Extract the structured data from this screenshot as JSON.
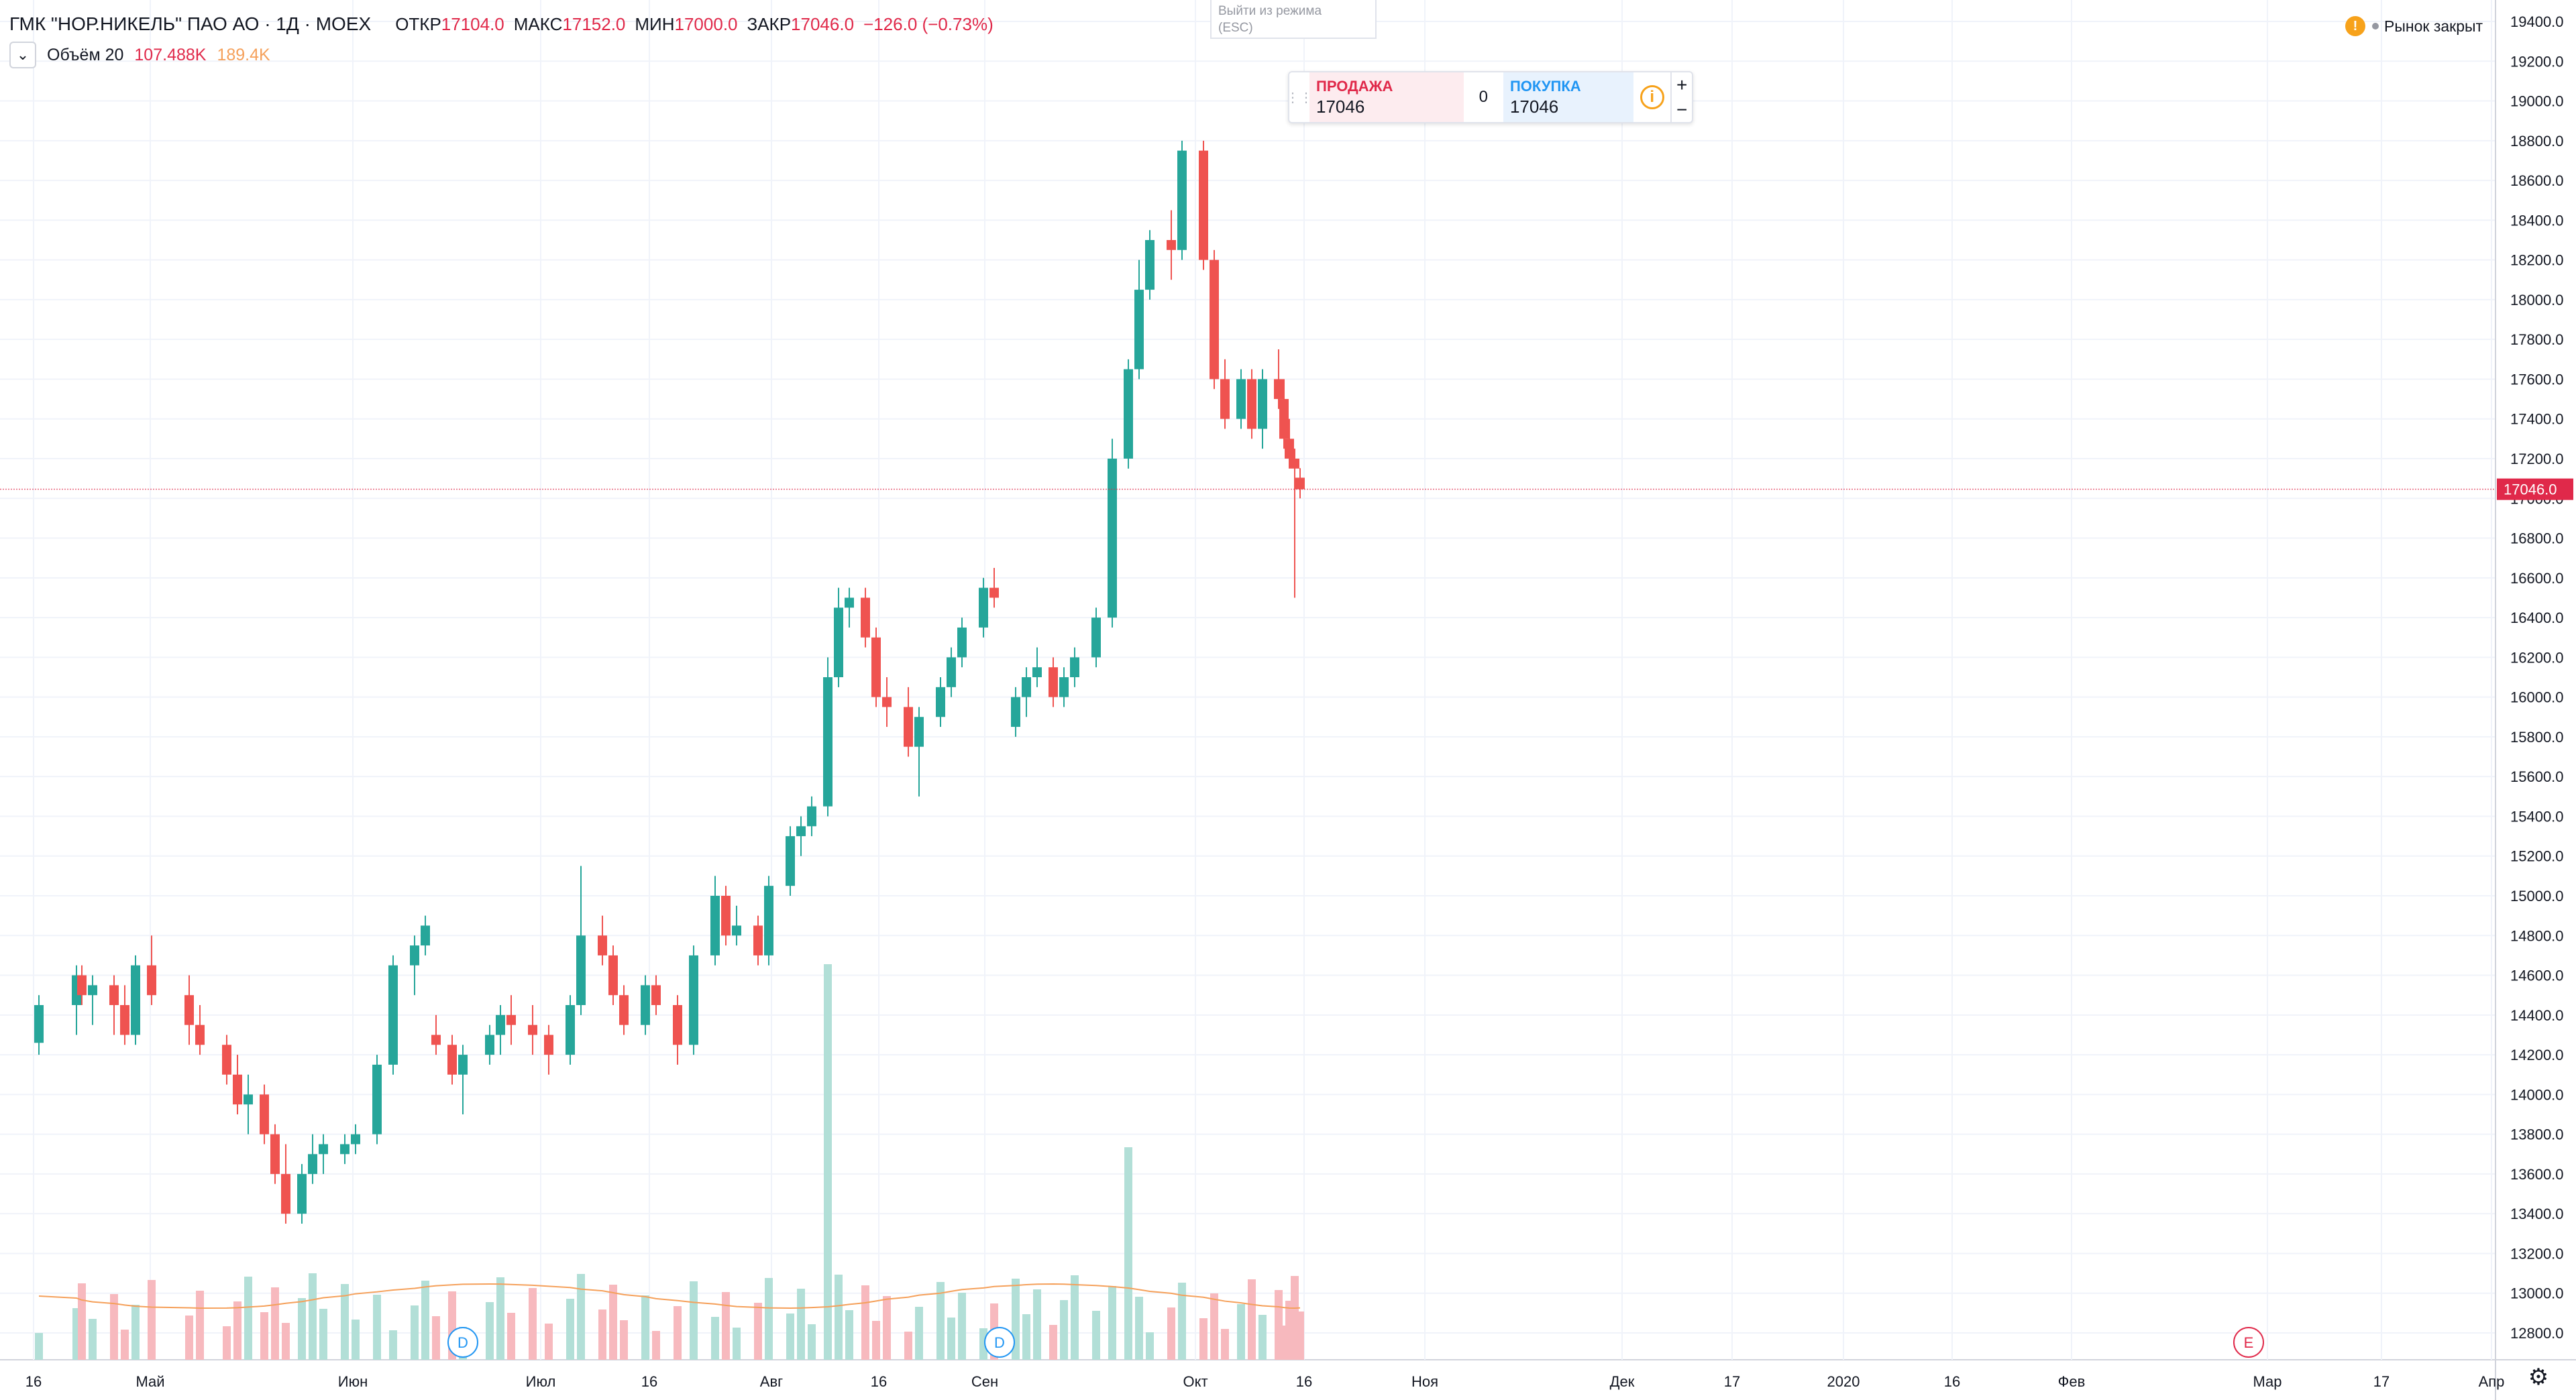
{
  "header": {
    "symbol": "ГМК \"НОР.НИКЕЛЬ\" ПАО АО · 1Д · MOEX",
    "open_label": "ОТКР",
    "open_value": "17104.0",
    "high_label": "МАКС",
    "high_value": "17152.0",
    "low_label": "МИН",
    "low_value": "17000.0",
    "close_label": "ЗАКР",
    "close_value": "17046.0",
    "change": "−126.0 (−0.73%)"
  },
  "volume_legend": {
    "toggle_icon": "chevron-down-icon",
    "label": "Объём 20",
    "value": "107.488K",
    "ma_value": "189.4K"
  },
  "exit_fullscreen": {
    "line1": "Выйти из режима",
    "line2": "(ESC)"
  },
  "trade_panel": {
    "sell_label": "ПРОДАЖА",
    "sell_price": "17046",
    "spread": "0",
    "buy_label": "ПОКУПКА",
    "buy_price": "17046",
    "info_icon": "i",
    "plus": "+",
    "minus": "−"
  },
  "market_status": {
    "icon": "!",
    "text": "Рынок закрыт"
  },
  "price_axis": {
    "ticks": [
      "19400.0",
      "19200.0",
      "19000.0",
      "18800.0",
      "18600.0",
      "18400.0",
      "18200.0",
      "18000.0",
      "17800.0",
      "17600.0",
      "17400.0",
      "17200.0",
      "17000.0",
      "16800.0",
      "16600.0",
      "16400.0",
      "16200.0",
      "16000.0",
      "15800.0",
      "15600.0",
      "15400.0",
      "15200.0",
      "15000.0",
      "14800.0",
      "14600.0",
      "14400.0",
      "14200.0",
      "14000.0",
      "13800.0",
      "13600.0",
      "13400.0",
      "13200.0",
      "13000.0",
      "12800.0"
    ],
    "last_price_label": "17046.0"
  },
  "time_axis": {
    "labels": [
      "16",
      "Май",
      "Июн",
      "Июл",
      "16",
      "Авг",
      "16",
      "Сен",
      "Окт",
      "16",
      "Ноя",
      "Дек",
      "17",
      "2020",
      "16",
      "Фев",
      "Мар",
      "17",
      "Апр"
    ]
  },
  "markers": [
    {
      "letter": "D",
      "date": "2019-06-26"
    },
    {
      "letter": "D",
      "date": "2019-10-04"
    },
    {
      "letter": "E",
      "date": "2020-02-19"
    }
  ],
  "colors": {
    "up": "#26a69a",
    "down": "#ef5350",
    "volume_up": "#b2dfd7",
    "volume_down": "#f7b9be",
    "volume_ma": "#f5a05a",
    "last_price": "#e0294a"
  },
  "chart_data": {
    "type": "candlestick",
    "ylim": [
      12800,
      19400
    ],
    "series": [
      {
        "date": "2019-04-08",
        "open": 14260,
        "high": 14500,
        "low": 14200,
        "close": 14450
      },
      {
        "date": "2019-04-15",
        "open": 14450,
        "high": 14650,
        "low": 14300,
        "close": 14600
      },
      {
        "date": "2019-04-16",
        "open": 14600,
        "high": 14650,
        "low": 14450,
        "close": 14500
      },
      {
        "date": "2019-04-18",
        "open": 14500,
        "high": 14600,
        "low": 14350,
        "close": 14550
      },
      {
        "date": "2019-04-22",
        "open": 14550,
        "high": 14600,
        "low": 14300,
        "close": 14450
      },
      {
        "date": "2019-04-24",
        "open": 14450,
        "high": 14550,
        "low": 14250,
        "close": 14300
      },
      {
        "date": "2019-04-26",
        "open": 14300,
        "high": 14700,
        "low": 14250,
        "close": 14650
      },
      {
        "date": "2019-04-29",
        "open": 14650,
        "high": 14800,
        "low": 14450,
        "close": 14500
      },
      {
        "date": "2019-05-06",
        "open": 14500,
        "high": 14600,
        "low": 14250,
        "close": 14350
      },
      {
        "date": "2019-05-08",
        "open": 14350,
        "high": 14450,
        "low": 14200,
        "close": 14250
      },
      {
        "date": "2019-05-13",
        "open": 14250,
        "high": 14300,
        "low": 14050,
        "close": 14100
      },
      {
        "date": "2019-05-15",
        "open": 14100,
        "high": 14200,
        "low": 13900,
        "close": 13950
      },
      {
        "date": "2019-05-17",
        "open": 13950,
        "high": 14100,
        "low": 13800,
        "close": 14000
      },
      {
        "date": "2019-05-20",
        "open": 14000,
        "high": 14050,
        "low": 13750,
        "close": 13800
      },
      {
        "date": "2019-05-22",
        "open": 13800,
        "high": 13850,
        "low": 13550,
        "close": 13600
      },
      {
        "date": "2019-05-24",
        "open": 13600,
        "high": 13750,
        "low": 13350,
        "close": 13400
      },
      {
        "date": "2019-05-27",
        "open": 13400,
        "high": 13650,
        "low": 13350,
        "close": 13600
      },
      {
        "date": "2019-05-29",
        "open": 13600,
        "high": 13800,
        "low": 13550,
        "close": 13700
      },
      {
        "date": "2019-05-31",
        "open": 13700,
        "high": 13800,
        "low": 13600,
        "close": 13750
      },
      {
        "date": "2019-06-04",
        "open": 13700,
        "high": 13800,
        "low": 13650,
        "close": 13750
      },
      {
        "date": "2019-06-06",
        "open": 13750,
        "high": 13850,
        "low": 13700,
        "close": 13800
      },
      {
        "date": "2019-06-10",
        "open": 13800,
        "high": 14200,
        "low": 13750,
        "close": 14150
      },
      {
        "date": "2019-06-13",
        "open": 14150,
        "high": 14700,
        "low": 14100,
        "close": 14650
      },
      {
        "date": "2019-06-17",
        "open": 14650,
        "high": 14800,
        "low": 14500,
        "close": 14750
      },
      {
        "date": "2019-06-19",
        "open": 14750,
        "high": 14900,
        "low": 14700,
        "close": 14850
      },
      {
        "date": "2019-06-21",
        "open": 14300,
        "high": 14400,
        "low": 14200,
        "close": 14250
      },
      {
        "date": "2019-06-24",
        "open": 14250,
        "high": 14300,
        "low": 14050,
        "close": 14100
      },
      {
        "date": "2019-06-26",
        "open": 14100,
        "high": 14250,
        "low": 13900,
        "close": 14200
      },
      {
        "date": "2019-07-01",
        "open": 14200,
        "high": 14350,
        "low": 14150,
        "close": 14300
      },
      {
        "date": "2019-07-03",
        "open": 14300,
        "high": 14450,
        "low": 14200,
        "close": 14400
      },
      {
        "date": "2019-07-05",
        "open": 14400,
        "high": 14500,
        "low": 14250,
        "close": 14350
      },
      {
        "date": "2019-07-09",
        "open": 14350,
        "high": 14450,
        "low": 14200,
        "close": 14300
      },
      {
        "date": "2019-07-12",
        "open": 14300,
        "high": 14350,
        "low": 14100,
        "close": 14200
      },
      {
        "date": "2019-07-16",
        "open": 14200,
        "high": 14500,
        "low": 14150,
        "close": 14450
      },
      {
        "date": "2019-07-18",
        "open": 14450,
        "high": 15150,
        "low": 14400,
        "close": 14800
      },
      {
        "date": "2019-07-22",
        "open": 14800,
        "high": 14900,
        "low": 14650,
        "close": 14700
      },
      {
        "date": "2019-07-24",
        "open": 14700,
        "high": 14750,
        "low": 14450,
        "close": 14500
      },
      {
        "date": "2019-07-26",
        "open": 14500,
        "high": 14550,
        "low": 14300,
        "close": 14350
      },
      {
        "date": "2019-07-30",
        "open": 14350,
        "high": 14600,
        "low": 14300,
        "close": 14550
      },
      {
        "date": "2019-08-01",
        "open": 14550,
        "high": 14600,
        "low": 14400,
        "close": 14450
      },
      {
        "date": "2019-08-05",
        "open": 14450,
        "high": 14500,
        "low": 14150,
        "close": 14250
      },
      {
        "date": "2019-08-08",
        "open": 14250,
        "high": 14750,
        "low": 14200,
        "close": 14700
      },
      {
        "date": "2019-08-12",
        "open": 14700,
        "high": 15100,
        "low": 14650,
        "close": 15000
      },
      {
        "date": "2019-08-14",
        "open": 15000,
        "high": 15050,
        "low": 14750,
        "close": 14800
      },
      {
        "date": "2019-08-16",
        "open": 14800,
        "high": 14950,
        "low": 14750,
        "close": 14850
      },
      {
        "date": "2019-08-20",
        "open": 14850,
        "high": 14900,
        "low": 14650,
        "close": 14700
      },
      {
        "date": "2019-08-22",
        "open": 14700,
        "high": 15100,
        "low": 14650,
        "close": 15050
      },
      {
        "date": "2019-08-26",
        "open": 15050,
        "high": 15350,
        "low": 15000,
        "close": 15300
      },
      {
        "date": "2019-08-28",
        "open": 15300,
        "high": 15400,
        "low": 15200,
        "close": 15350
      },
      {
        "date": "2019-08-30",
        "open": 15350,
        "high": 15500,
        "low": 15300,
        "close": 15450
      },
      {
        "date": "2019-09-02",
        "open": 15450,
        "high": 16200,
        "low": 15400,
        "close": 16100
      },
      {
        "date": "2019-09-04",
        "open": 16100,
        "high": 16550,
        "low": 16050,
        "close": 16450
      },
      {
        "date": "2019-09-06",
        "open": 16450,
        "high": 16550,
        "low": 16350,
        "close": 16500
      },
      {
        "date": "2019-09-09",
        "open": 16500,
        "high": 16550,
        "low": 16250,
        "close": 16300
      },
      {
        "date": "2019-09-11",
        "open": 16300,
        "high": 16350,
        "low": 15950,
        "close": 16000
      },
      {
        "date": "2019-09-13",
        "open": 16000,
        "high": 16100,
        "low": 15850,
        "close": 15950
      },
      {
        "date": "2019-09-17",
        "open": 15950,
        "high": 16050,
        "low": 15700,
        "close": 15750
      },
      {
        "date": "2019-09-19",
        "open": 15750,
        "high": 15950,
        "low": 15500,
        "close": 15900
      },
      {
        "date": "2019-09-23",
        "open": 15900,
        "high": 16100,
        "low": 15850,
        "close": 16050
      },
      {
        "date": "2019-09-25",
        "open": 16050,
        "high": 16250,
        "low": 16000,
        "close": 16200
      },
      {
        "date": "2019-09-27",
        "open": 16200,
        "high": 16400,
        "low": 16150,
        "close": 16350
      },
      {
        "date": "2019-10-01",
        "open": 16350,
        "high": 16600,
        "low": 16300,
        "close": 16550
      },
      {
        "date": "2019-10-03",
        "open": 16550,
        "high": 16650,
        "low": 16450,
        "close": 16500
      },
      {
        "date": "2019-10-07",
        "open": 15850,
        "high": 16050,
        "low": 15800,
        "close": 16000
      },
      {
        "date": "2019-10-09",
        "open": 16000,
        "high": 16150,
        "low": 15900,
        "close": 16100
      },
      {
        "date": "2019-10-11",
        "open": 16100,
        "high": 16250,
        "low": 16050,
        "close": 16150
      },
      {
        "date": "2019-10-14",
        "open": 16150,
        "high": 16200,
        "low": 15950,
        "close": 16000
      },
      {
        "date": "2019-10-16",
        "open": 16000,
        "high": 16150,
        "low": 15950,
        "close": 16100
      },
      {
        "date": "2019-10-18",
        "open": 16100,
        "high": 16250,
        "low": 16050,
        "close": 16200
      },
      {
        "date": "2019-10-22",
        "open": 16200,
        "high": 16450,
        "low": 16150,
        "close": 16400
      },
      {
        "date": "2019-10-25",
        "open": 16400,
        "high": 17300,
        "low": 16350,
        "close": 17200
      },
      {
        "date": "2019-10-28",
        "open": 17200,
        "high": 17700,
        "low": 17150,
        "close": 17650
      },
      {
        "date": "2019-10-30",
        "open": 17650,
        "high": 18200,
        "low": 17600,
        "close": 18050
      },
      {
        "date": "2019-11-01",
        "open": 18050,
        "high": 18350,
        "low": 18000,
        "close": 18300
      },
      {
        "date": "2019-11-05",
        "open": 18300,
        "high": 18450,
        "low": 18100,
        "close": 18250
      },
      {
        "date": "2019-11-07",
        "open": 18250,
        "high": 18800,
        "low": 18200,
        "close": 18750
      },
      {
        "date": "2019-11-11",
        "open": 18750,
        "high": 18800,
        "low": 18150,
        "close": 18200
      },
      {
        "date": "2019-11-13",
        "open": 18200,
        "high": 18250,
        "low": 17550,
        "close": 17600
      },
      {
        "date": "2019-11-15",
        "open": 17600,
        "high": 17700,
        "low": 17350,
        "close": 17400
      },
      {
        "date": "2019-11-18",
        "open": 17400,
        "high": 17650,
        "low": 17350,
        "close": 17600
      },
      {
        "date": "2019-11-20",
        "open": 17600,
        "high": 17650,
        "low": 17300,
        "close": 17350
      },
      {
        "date": "2019-11-22",
        "open": 17350,
        "high": 17650,
        "low": 17250,
        "close": 17600
      },
      {
        "date": "2019-11-25",
        "open": 17600,
        "high": 17750,
        "low": 17450,
        "close": 17500
      },
      {
        "date": "2019-11-26",
        "open": 17500,
        "high": 17600,
        "low": 17250,
        "close": 17300
      },
      {
        "date": "2019-11-27",
        "open": 17300,
        "high": 17400,
        "low": 17150,
        "close": 17200
      },
      {
        "date": "2019-11-28",
        "open": 17200,
        "high": 17250,
        "low": 16500,
        "close": 17150
      },
      {
        "date": "2019-11-29",
        "open": 17104,
        "high": 17152,
        "low": 17000,
        "close": 17046
      }
    ]
  }
}
